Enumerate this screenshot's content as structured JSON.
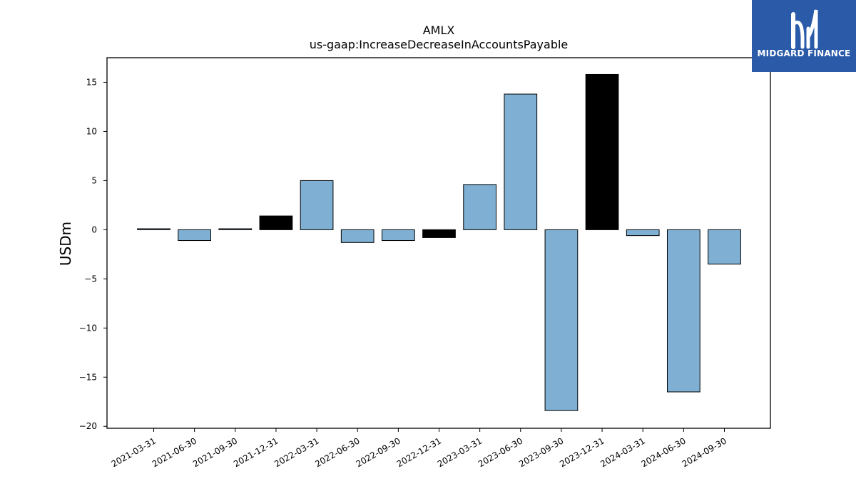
{
  "chart_data": {
    "type": "bar",
    "title": "AMLX",
    "subtitle": "us-gaap:IncreaseDecreaseInAccountsPayable",
    "xlabel": "",
    "ylabel": "USDm",
    "ylim": [
      -20.2,
      17.5
    ],
    "yticks": [
      -20,
      -15,
      -10,
      -5,
      0,
      5,
      10,
      15
    ],
    "ytick_labels": [
      "−20",
      "−15",
      "−10",
      "−5",
      "0",
      "5",
      "10",
      "15"
    ],
    "grid": false,
    "categories": [
      "2021-03-31",
      "2021-06-30",
      "2021-09-30",
      "2021-12-31",
      "2022-03-31",
      "2022-06-30",
      "2022-09-30",
      "2022-12-31",
      "2023-03-31",
      "2023-06-30",
      "2023-09-30",
      "2023-12-31",
      "2024-03-31",
      "2024-06-30",
      "2024-09-30"
    ],
    "values": [
      0.1,
      -1.1,
      0.1,
      1.4,
      5.0,
      -1.3,
      -1.1,
      -0.8,
      4.6,
      13.8,
      -18.4,
      15.8,
      -0.6,
      -16.5,
      -3.5
    ],
    "bar_colors": [
      "#7fb0d3",
      "#7fb0d3",
      "#7fb0d3",
      "#000000",
      "#7fb0d3",
      "#7fb0d3",
      "#7fb0d3",
      "#000000",
      "#7fb0d3",
      "#7fb0d3",
      "#7fb0d3",
      "#000000",
      "#7fb0d3",
      "#7fb0d3",
      "#7fb0d3"
    ],
    "tick_label_rotation": 30
  },
  "logo": {
    "text": "MIDGARD FINANCE",
    "background": "#2a5aa8"
  }
}
